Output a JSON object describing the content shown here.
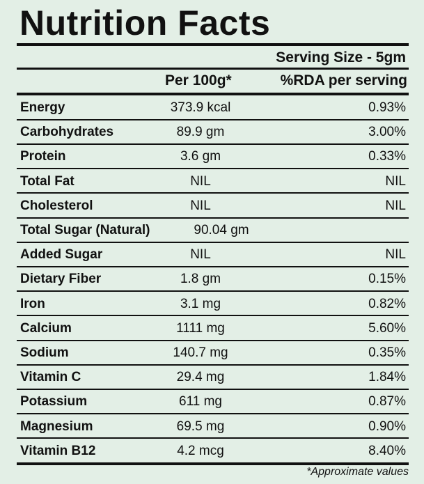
{
  "header": {
    "title": "Nutrition Facts",
    "serving_size": "Serving Size - 5gm"
  },
  "table": {
    "columns": [
      "Per 100g*",
      "%RDA per serving"
    ],
    "rows": [
      [
        "Energy",
        "373.9 kcal",
        "0.93%"
      ],
      [
        "Carbohydrates",
        "89.9 gm",
        "3.00%"
      ],
      [
        "Protein",
        "3.6 gm",
        "0.33%"
      ],
      [
        "Total Fat",
        "NIL",
        "NIL"
      ],
      [
        "Cholesterol",
        "NIL",
        "NIL"
      ],
      [
        "Total Sugar (Natural)",
        "90.04 gm"
      ],
      [
        "Added Sugar",
        "NIL",
        "NIL"
      ],
      [
        "Dietary Fiber",
        "1.8 gm",
        "0.15%"
      ],
      [
        "Iron",
        "3.1 mg",
        "0.82%"
      ],
      [
        "Calcium",
        "1111 mg",
        "5.60%"
      ],
      [
        "Sodium",
        "140.7 mg",
        "0.35%"
      ],
      [
        "Vitamin C",
        "29.4 mg",
        "1.84%"
      ],
      [
        "Potassium",
        "611 mg",
        "0.87%"
      ],
      [
        "Magnesium",
        "69.5 mg",
        "0.90%"
      ],
      [
        "Vitamin B12",
        "4.2 mcg",
        "8.40%"
      ]
    ]
  },
  "footnote": "*Approximate values"
}
